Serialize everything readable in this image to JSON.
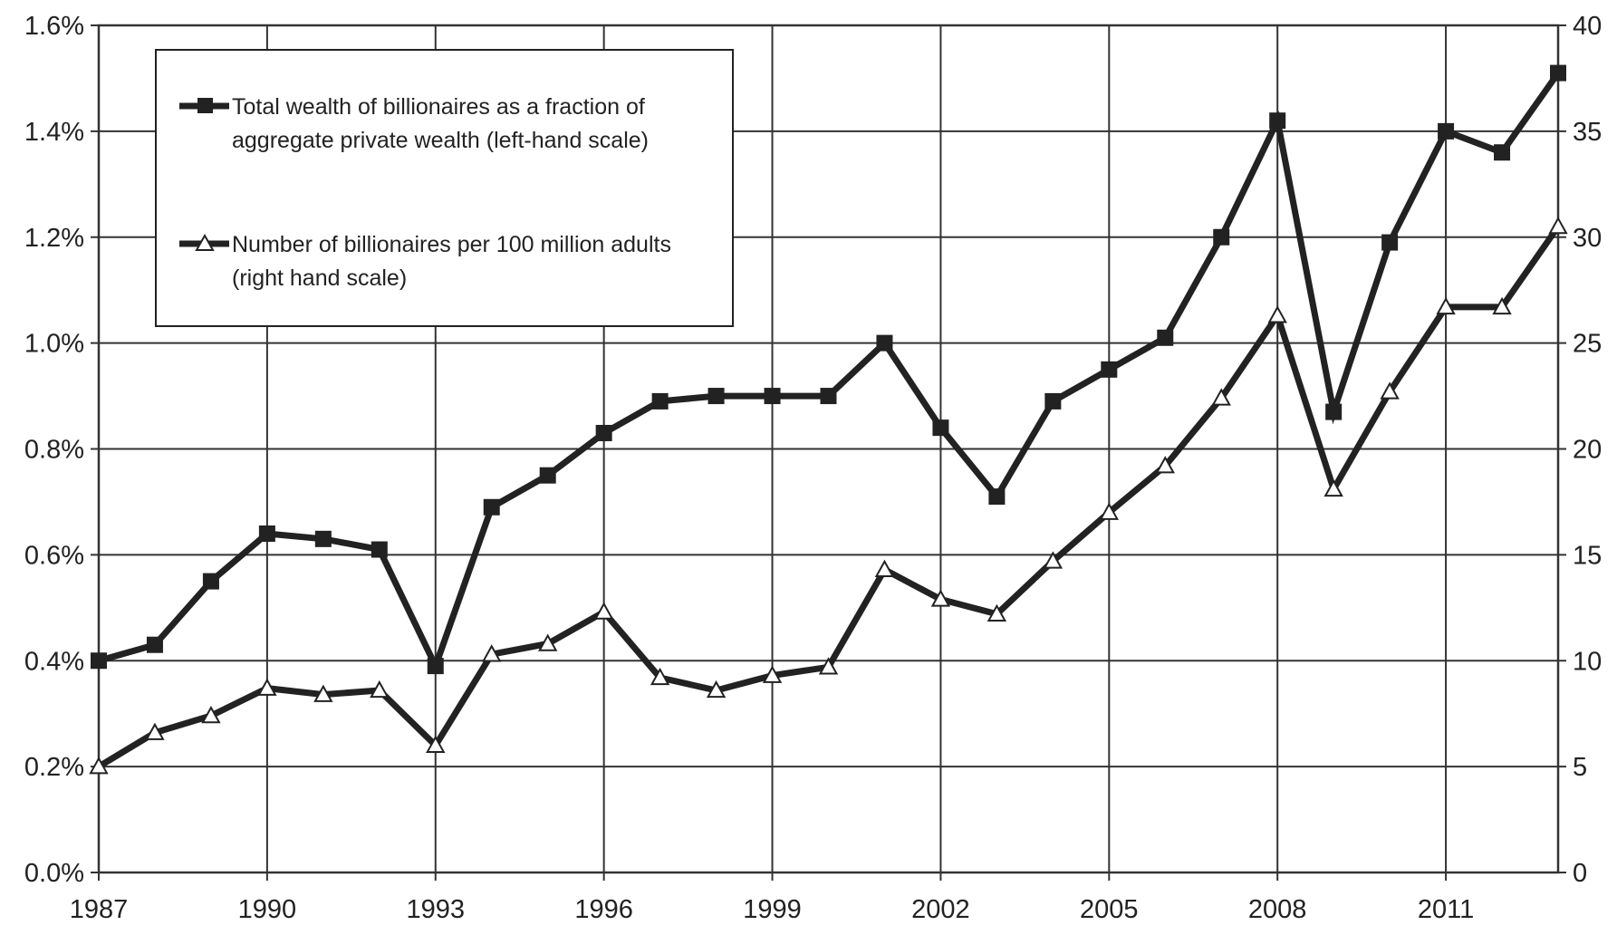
{
  "chart_data": {
    "type": "line",
    "title": "",
    "xlabel": "",
    "ylabel": "",
    "y2label": "",
    "x": [
      1987,
      1988,
      1989,
      1990,
      1991,
      1992,
      1993,
      1994,
      1995,
      1996,
      1997,
      1998,
      1999,
      2000,
      2001,
      2002,
      2003,
      2004,
      2005,
      2006,
      2007,
      2008,
      2009,
      2010,
      2011,
      2012,
      2013
    ],
    "xlim": [
      1987,
      2013
    ],
    "x_ticks": [
      "1987",
      "1990",
      "1993",
      "1996",
      "1999",
      "2002",
      "2005",
      "2008",
      "2011"
    ],
    "ylim": [
      0,
      1.6
    ],
    "y_ticks": [
      "0.0%",
      "0.2%",
      "0.4%",
      "0.6%",
      "0.8%",
      "1.0%",
      "1.2%",
      "1.4%",
      "1.6%"
    ],
    "y2lim": [
      0,
      40
    ],
    "y2_ticks": [
      "0",
      "5",
      "10",
      "15",
      "20",
      "25",
      "30",
      "35",
      "40"
    ],
    "grid": true,
    "legend_position": "top-left",
    "series": [
      {
        "name": "Total wealth of billionaires as a fraction of aggregate private wealth (left-hand scale)",
        "legend_lines": [
          "Total wealth of billionaires as a fraction of",
          "aggregate private wealth (left-hand scale)"
        ],
        "axis": "left",
        "marker": "square",
        "color": "#222222",
        "values": [
          0.4,
          0.43,
          0.55,
          0.64,
          0.63,
          0.61,
          0.39,
          0.69,
          0.75,
          0.83,
          0.89,
          0.9,
          0.9,
          0.9,
          1.0,
          0.84,
          0.71,
          0.89,
          0.95,
          1.01,
          1.2,
          1.42,
          0.87,
          1.19,
          1.4,
          1.36,
          1.51
        ]
      },
      {
        "name": "Number of billionaires per 100 million adults (right hand scale)",
        "legend_lines": [
          "Number of billionaires per 100 million adults",
          "(right hand scale)"
        ],
        "axis": "right",
        "marker": "triangle-open",
        "color": "#222222",
        "values": [
          5.0,
          6.6,
          7.4,
          8.7,
          8.4,
          8.6,
          6.0,
          10.3,
          10.8,
          12.3,
          9.2,
          8.6,
          9.3,
          9.7,
          14.3,
          12.9,
          12.2,
          14.7,
          17.0,
          19.2,
          22.4,
          26.3,
          18.1,
          22.7,
          26.7,
          26.7,
          30.5
        ]
      }
    ]
  }
}
